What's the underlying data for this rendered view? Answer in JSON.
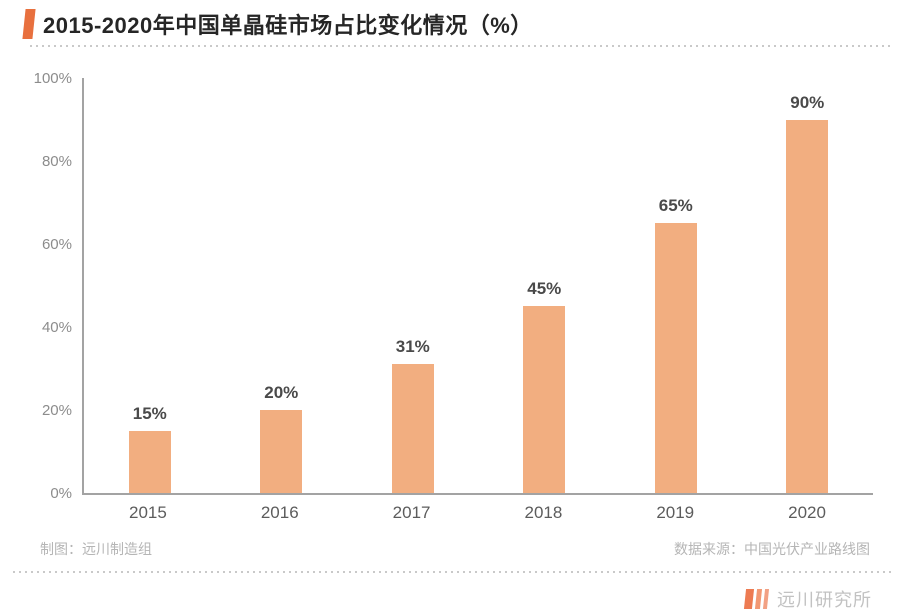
{
  "page": {
    "title": "2015-2020年中国单晶硅市场占比变化情况（%）",
    "credit_left": "制图：远川制造组",
    "credit_right": "数据来源：中国光伏产业路线图",
    "footer_brand": "远川研究所"
  },
  "colors": {
    "accent": "#e8703e",
    "bar": "#f2ae80",
    "axis": "#a3a3a3",
    "logo_bars": [
      "#ed7b52",
      "#f29873",
      "#f2a184"
    ]
  },
  "chart_data": {
    "type": "bar",
    "title": "2015-2020年中国单晶硅市场占比变化情况（%）",
    "categories": [
      "2015",
      "2016",
      "2017",
      "2018",
      "2019",
      "2020"
    ],
    "values": [
      15,
      20,
      31,
      45,
      65,
      90
    ],
    "value_labels": [
      "15%",
      "20%",
      "31%",
      "45%",
      "65%",
      "90%"
    ],
    "xlabel": "",
    "ylabel": "",
    "ylim": [
      0,
      100
    ],
    "y_ticks": [
      {
        "label": "0%",
        "value": 0
      },
      {
        "label": "20%",
        "value": 20
      },
      {
        "label": "40%",
        "value": 40
      },
      {
        "label": "60%",
        "value": 60
      },
      {
        "label": "80%",
        "value": 80
      },
      {
        "label": "100%",
        "value": 100
      }
    ],
    "grid": false,
    "legend": false,
    "bar_color": "#f2ae80"
  }
}
